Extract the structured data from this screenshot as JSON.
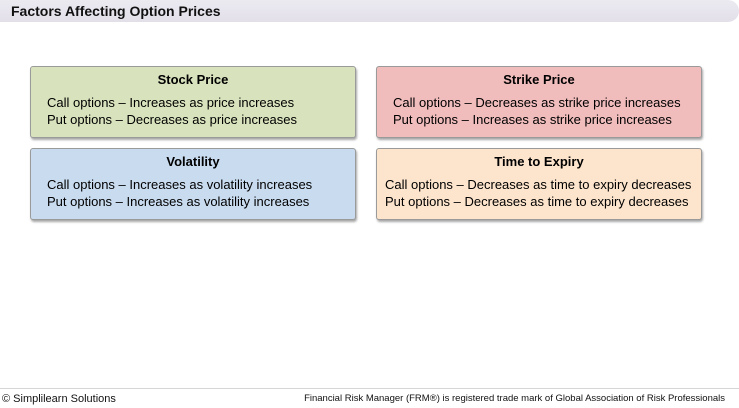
{
  "header": {
    "title": "Factors Affecting Option Prices"
  },
  "cards": [
    {
      "title": "Stock Price",
      "call": "Call options – Increases as price increases",
      "put": "Put options – Decreases as price increases",
      "color": "#d8e3bd"
    },
    {
      "title": "Strike Price",
      "call": "Call options – Decreases as strike price increases",
      "put": "Put options – Increases as strike price increases",
      "color": "#f0bcbc"
    },
    {
      "title": "Volatility",
      "call": "Call options – Increases as volatility increases",
      "put": "Put options – Increases as volatility increases",
      "color": "#c9dbef"
    },
    {
      "title": "Time to Expiry",
      "call": "Call options – Decreases as time to expiry decreases",
      "put": "Put options – Decreases as time to expiry decreases",
      "color": "#fde4cc"
    }
  ],
  "footer": {
    "copyright": "© Simplilearn Solutions",
    "trademark": "Financial Risk Manager (FRM®) is registered trade mark of Global Association of Risk Professionals"
  }
}
